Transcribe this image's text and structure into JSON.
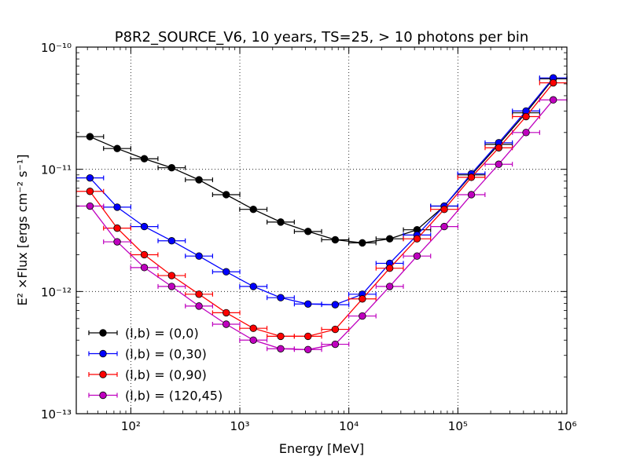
{
  "chart_data": {
    "type": "line",
    "title": "P8R2_SOURCE_V6, 10 years, TS=25, > 10 photons per bin",
    "xlabel": "Energy [MeV]",
    "ylabel": "E² ×Flux [ergs cm⁻² s⁻¹]",
    "xscale": "log",
    "yscale": "log",
    "xlim": [
      31.6,
      1000000
    ],
    "ylim": [
      1e-13,
      1e-10
    ],
    "xticks": [
      {
        "value": 100,
        "label": "10²"
      },
      {
        "value": 1000,
        "label": "10³"
      },
      {
        "value": 10000,
        "label": "10⁴"
      },
      {
        "value": 100000,
        "label": "10⁵"
      },
      {
        "value": 1000000,
        "label": "10⁶"
      }
    ],
    "yticks": [
      {
        "value": 1e-13,
        "label": "10⁻¹³"
      },
      {
        "value": 1e-12,
        "label": "10⁻¹²"
      },
      {
        "value": 1e-11,
        "label": "10⁻¹¹"
      },
      {
        "value": 1e-10,
        "label": "10⁻¹⁰"
      }
    ],
    "grid": true,
    "legend_position": "bottom-left",
    "x": [
      42.2,
      75,
      133,
      237,
      422,
      750,
      1330,
      2370,
      4220,
      7500,
      13300,
      23700,
      42200,
      75000,
      133000,
      237000,
      422000,
      750000
    ],
    "series": [
      {
        "name": "(l,b) = (0,0)",
        "color": "#000000",
        "values": [
          1.85e-11,
          1.48e-11,
          1.22e-11,
          1.03e-11,
          8.2e-12,
          6.2e-12,
          4.7e-12,
          3.7e-12,
          3.1e-12,
          2.65e-12,
          2.5e-12,
          2.7e-12,
          3.2e-12,
          5e-12,
          9e-12,
          1.6e-11,
          2.9e-11,
          5.5e-11
        ]
      },
      {
        "name": "(l,b) = (0,30)",
        "color": "#0000ff",
        "values": [
          8.5e-12,
          4.9e-12,
          3.4e-12,
          2.6e-12,
          1.95e-12,
          1.45e-12,
          1.1e-12,
          8.9e-13,
          7.9e-13,
          7.8e-13,
          9.5e-13,
          1.7e-12,
          2.9e-12,
          5e-12,
          9.2e-12,
          1.65e-11,
          3e-11,
          5.6e-11
        ]
      },
      {
        "name": "(l,b) = (0,90)",
        "color": "#ff0000",
        "values": [
          6.6e-12,
          3.3e-12,
          2e-12,
          1.35e-12,
          9.5e-13,
          6.7e-13,
          5e-13,
          4.3e-13,
          4.3e-13,
          4.9e-13,
          8.7e-13,
          1.55e-12,
          2.7e-12,
          4.7e-12,
          8.6e-12,
          1.5e-11,
          2.7e-11,
          5.1e-11
        ]
      },
      {
        "name": "(l,b) = (120,45)",
        "color": "#bf00bf",
        "values": [
          5e-12,
          2.55e-12,
          1.57e-12,
          1.1e-12,
          7.6e-13,
          5.4e-13,
          4e-13,
          3.4e-13,
          3.35e-13,
          3.7e-13,
          6.3e-13,
          1.1e-12,
          1.95e-12,
          3.4e-12,
          6.2e-12,
          1.1e-11,
          2e-11,
          3.7e-11
        ]
      }
    ]
  }
}
